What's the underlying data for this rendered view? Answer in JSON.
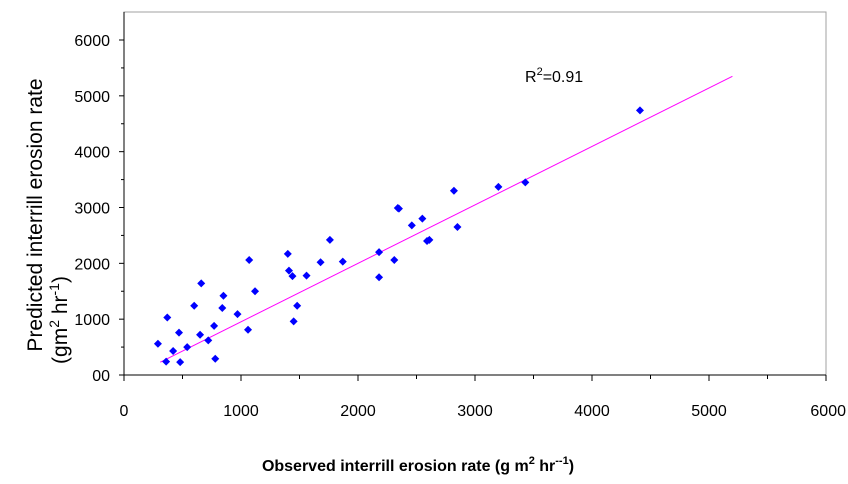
{
  "chart_data": {
    "type": "scatter",
    "title": "",
    "xlabel": "Observed interrill erosion rate (g m",
    "xlabel_sup": "2",
    "xlabel_mid": " hr",
    "xlabel_sup2": "--1",
    "xlabel_end": ")",
    "ylabel_line1": "Predicted interrill erosion rate",
    "ylabel_line2": "(gm",
    "ylabel_sup": "2",
    "ylabel_mid": " hr",
    "ylabel_sup2": "-1",
    "ylabel_end": ")",
    "xlim": [
      0,
      6000
    ],
    "ylim": [
      0,
      6000
    ],
    "x_ticks": [
      0,
      1000,
      2000,
      3000,
      4000,
      5000,
      6000
    ],
    "y_ticks": [
      0,
      1000,
      2000,
      3000,
      4000,
      5000,
      6000
    ],
    "x_tick_labels": [
      "0",
      "1000",
      "2000",
      "3000",
      "4000",
      "5000",
      "6000"
    ],
    "y_tick_labels": [
      "00",
      "1000",
      "2000",
      "3000",
      "4000",
      "5000",
      "6000"
    ],
    "grid": false,
    "marker_color": "#0000ff",
    "trend_color": "#ff00ff",
    "annotation_main": "R",
    "annotation_sup": "2",
    "annotation_value": "=0.91",
    "trendline": {
      "x": [
        310,
        5200
      ],
      "y": [
        230,
        5350
      ]
    },
    "points": {
      "x": [
        290,
        360,
        370,
        420,
        470,
        480,
        540,
        600,
        650,
        660,
        720,
        770,
        780,
        840,
        850,
        970,
        1060,
        1070,
        1120,
        1400,
        1410,
        1440,
        1450,
        1480,
        1560,
        1680,
        1760,
        1870,
        2180,
        2180,
        2310,
        2340,
        2350,
        2460,
        2550,
        2590,
        2610,
        2820,
        2850,
        3200,
        3430,
        4410
      ],
      "y": [
        560,
        240,
        1030,
        430,
        760,
        230,
        500,
        1240,
        720,
        1640,
        620,
        880,
        290,
        1200,
        1420,
        1090,
        810,
        2060,
        1500,
        2170,
        1870,
        1770,
        960,
        1240,
        1780,
        2020,
        2420,
        2030,
        2200,
        1750,
        2060,
        2990,
        2980,
        2680,
        2800,
        2400,
        2420,
        3300,
        2650,
        3370,
        3450,
        4740
      ]
    }
  }
}
